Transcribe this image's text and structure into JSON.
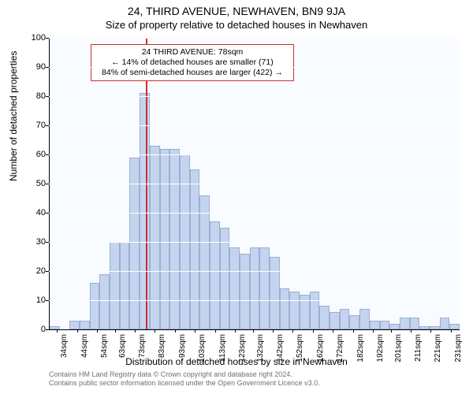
{
  "header": {
    "title": "24, THIRD AVENUE, NEWHAVEN, BN9 9JA",
    "subtitle": "Size of property relative to detached houses in Newhaven"
  },
  "chart": {
    "type": "histogram",
    "ylabel": "Number of detached properties",
    "xlabel": "Distribution of detached houses by size in Newhaven",
    "plot_bg": "#f8fbff",
    "grid_color": "#ffffff",
    "bar_fill": "#c5d4ee",
    "bar_border": "#9aaed4",
    "axis_color": "#000000",
    "ylim": [
      0,
      100
    ],
    "ytick_step": 10,
    "bin_width_sqm": 5,
    "x_start": 30,
    "x_end": 235,
    "xticks": [
      34,
      44,
      54,
      63,
      73,
      83,
      93,
      103,
      113,
      123,
      132,
      142,
      152,
      162,
      172,
      182,
      192,
      201,
      211,
      221,
      231
    ],
    "xtick_suffix": "sqm",
    "bins": [
      {
        "x": 30,
        "count": 1
      },
      {
        "x": 35,
        "count": 0
      },
      {
        "x": 40,
        "count": 3
      },
      {
        "x": 45,
        "count": 3
      },
      {
        "x": 50,
        "count": 16
      },
      {
        "x": 55,
        "count": 19
      },
      {
        "x": 60,
        "count": 30
      },
      {
        "x": 65,
        "count": 30
      },
      {
        "x": 70,
        "count": 59
      },
      {
        "x": 75,
        "count": 81
      },
      {
        "x": 80,
        "count": 63
      },
      {
        "x": 85,
        "count": 62
      },
      {
        "x": 90,
        "count": 62
      },
      {
        "x": 95,
        "count": 60
      },
      {
        "x": 100,
        "count": 55
      },
      {
        "x": 105,
        "count": 46
      },
      {
        "x": 110,
        "count": 37
      },
      {
        "x": 115,
        "count": 35
      },
      {
        "x": 120,
        "count": 28
      },
      {
        "x": 125,
        "count": 26
      },
      {
        "x": 130,
        "count": 28
      },
      {
        "x": 135,
        "count": 28
      },
      {
        "x": 140,
        "count": 25
      },
      {
        "x": 145,
        "count": 14
      },
      {
        "x": 150,
        "count": 13
      },
      {
        "x": 155,
        "count": 12
      },
      {
        "x": 160,
        "count": 13
      },
      {
        "x": 165,
        "count": 8
      },
      {
        "x": 170,
        "count": 6
      },
      {
        "x": 175,
        "count": 7
      },
      {
        "x": 180,
        "count": 5
      },
      {
        "x": 185,
        "count": 7
      },
      {
        "x": 190,
        "count": 3
      },
      {
        "x": 195,
        "count": 3
      },
      {
        "x": 200,
        "count": 2
      },
      {
        "x": 205,
        "count": 4
      },
      {
        "x": 210,
        "count": 4
      },
      {
        "x": 215,
        "count": 1
      },
      {
        "x": 220,
        "count": 1
      },
      {
        "x": 225,
        "count": 4
      },
      {
        "x": 230,
        "count": 2
      }
    ],
    "marker": {
      "x_value": 78,
      "color": "#c9302c",
      "line_width": 2,
      "annotation": {
        "line1": "24 THIRD AVENUE: 78sqm",
        "line2": "← 14% of detached houses are smaller (71)",
        "line3": "84% of semi-detached houses are larger (422) →",
        "border_color": "#c9302c",
        "bg_color": "#ffffff",
        "fontsize": 10.5
      }
    }
  },
  "footer": {
    "line1": "Contains HM Land Registry data © Crown copyright and database right 2024.",
    "line2": "Contains public sector information licensed under the Open Government Licence v3.0."
  }
}
